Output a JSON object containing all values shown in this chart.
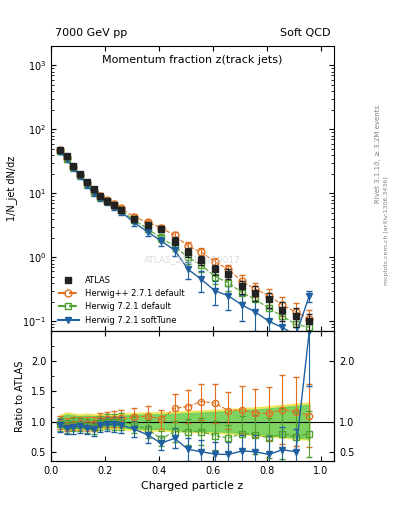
{
  "title_main": "Momentum fraction z(track jets)",
  "title_top_left": "7000 GeV pp",
  "title_top_right": "Soft QCD",
  "right_label": "Rivet 3.1.10, ≥ 3.2M events",
  "right_label2": "mcplots.cern.ch [arXiv:1306.3436]",
  "watermark": "ATLAS_2011_I919017",
  "xlabel": "Charged particle z",
  "ylabel": "1/N_jet dN/dz",
  "ylabel_ratio": "Ratio to ATLAS",
  "xlim": [
    0.0,
    1.05
  ],
  "ylim_main": [
    0.07,
    2000
  ],
  "ylim_ratio": [
    0.35,
    2.5
  ],
  "atlas_x": [
    0.033,
    0.058,
    0.083,
    0.108,
    0.133,
    0.158,
    0.183,
    0.208,
    0.233,
    0.258,
    0.308,
    0.358,
    0.408,
    0.458,
    0.508,
    0.558,
    0.608,
    0.658,
    0.708,
    0.758,
    0.808,
    0.858,
    0.908,
    0.958
  ],
  "atlas_y": [
    48.0,
    38.0,
    27.0,
    20.0,
    15.0,
    11.5,
    9.0,
    7.5,
    6.5,
    5.5,
    4.0,
    3.2,
    2.8,
    1.8,
    1.2,
    0.9,
    0.65,
    0.55,
    0.35,
    0.28,
    0.22,
    0.15,
    0.12,
    0.1
  ],
  "atlas_yerr": [
    3.5,
    2.8,
    2.0,
    1.5,
    1.2,
    0.9,
    0.7,
    0.6,
    0.55,
    0.5,
    0.4,
    0.35,
    0.3,
    0.25,
    0.2,
    0.15,
    0.12,
    0.1,
    0.08,
    0.07,
    0.06,
    0.05,
    0.04,
    0.03
  ],
  "hpp_x": [
    0.033,
    0.058,
    0.083,
    0.108,
    0.133,
    0.158,
    0.183,
    0.208,
    0.233,
    0.258,
    0.308,
    0.358,
    0.408,
    0.458,
    0.508,
    0.558,
    0.608,
    0.658,
    0.708,
    0.758,
    0.808,
    0.858,
    0.908,
    0.958
  ],
  "hpp_y": [
    47.0,
    36.0,
    26.0,
    19.5,
    14.5,
    11.0,
    9.2,
    7.8,
    6.8,
    5.8,
    4.3,
    3.5,
    2.9,
    2.2,
    1.5,
    1.2,
    0.85,
    0.65,
    0.42,
    0.32,
    0.25,
    0.18,
    0.14,
    0.11
  ],
  "hpp_yerr": [
    4.0,
    3.0,
    2.2,
    1.6,
    1.3,
    1.0,
    0.8,
    0.7,
    0.65,
    0.55,
    0.45,
    0.38,
    0.32,
    0.28,
    0.22,
    0.18,
    0.14,
    0.12,
    0.1,
    0.08,
    0.07,
    0.06,
    0.05,
    0.04
  ],
  "h72d_x": [
    0.033,
    0.058,
    0.083,
    0.108,
    0.133,
    0.158,
    0.183,
    0.208,
    0.233,
    0.258,
    0.308,
    0.358,
    0.408,
    0.458,
    0.508,
    0.558,
    0.608,
    0.658,
    0.708,
    0.758,
    0.808,
    0.858,
    0.908,
    0.958
  ],
  "h72d_y": [
    46.0,
    35.0,
    25.5,
    19.0,
    14.0,
    10.5,
    8.8,
    7.5,
    6.5,
    5.5,
    3.8,
    2.8,
    2.0,
    1.5,
    1.0,
    0.75,
    0.5,
    0.4,
    0.28,
    0.22,
    0.16,
    0.12,
    0.09,
    0.08
  ],
  "h72d_yerr": [
    4.0,
    3.0,
    2.2,
    1.6,
    1.3,
    1.0,
    0.8,
    0.7,
    0.65,
    0.55,
    0.42,
    0.35,
    0.28,
    0.24,
    0.2,
    0.16,
    0.12,
    0.1,
    0.08,
    0.07,
    0.06,
    0.05,
    0.04,
    0.03
  ],
  "h72s_x": [
    0.033,
    0.058,
    0.083,
    0.108,
    0.133,
    0.158,
    0.183,
    0.208,
    0.233,
    0.258,
    0.308,
    0.358,
    0.408,
    0.458,
    0.508,
    0.558,
    0.608,
    0.658,
    0.708,
    0.758,
    0.808,
    0.858,
    0.908,
    0.958
  ],
  "h72s_y": [
    45.0,
    34.0,
    24.5,
    18.5,
    13.5,
    10.0,
    8.5,
    7.2,
    6.2,
    5.2,
    3.5,
    2.5,
    1.8,
    1.3,
    0.65,
    0.45,
    0.3,
    0.25,
    0.18,
    0.14,
    0.1,
    0.08,
    0.06,
    0.25
  ],
  "h72s_yerr": [
    4.0,
    3.0,
    2.2,
    1.6,
    1.3,
    1.0,
    0.8,
    0.7,
    0.65,
    0.55,
    0.42,
    0.35,
    0.28,
    0.24,
    0.2,
    0.16,
    0.12,
    0.1,
    0.08,
    0.07,
    0.06,
    0.05,
    0.04,
    0.05
  ],
  "atlas_band_x": [
    0.033,
    0.058,
    0.083,
    0.108,
    0.133,
    0.158,
    0.183,
    0.208,
    0.233,
    0.258,
    0.308,
    0.358,
    0.408,
    0.458,
    0.508,
    0.558,
    0.608,
    0.658,
    0.708,
    0.758,
    0.808,
    0.858,
    0.908,
    0.958
  ],
  "atlas_band_lo": [
    0.92,
    0.88,
    0.9,
    0.91,
    0.9,
    0.91,
    0.91,
    0.91,
    0.91,
    0.9,
    0.89,
    0.88,
    0.88,
    0.87,
    0.86,
    0.85,
    0.84,
    0.83,
    0.81,
    0.8,
    0.78,
    0.76,
    0.74,
    0.72
  ],
  "atlas_band_hi": [
    1.08,
    1.12,
    1.1,
    1.09,
    1.1,
    1.09,
    1.09,
    1.09,
    1.09,
    1.1,
    1.11,
    1.12,
    1.12,
    1.13,
    1.14,
    1.15,
    1.16,
    1.17,
    1.19,
    1.2,
    1.22,
    1.24,
    1.26,
    1.28
  ],
  "color_atlas": "#222222",
  "color_hpp": "#e07020",
  "color_h72d": "#50a030",
  "color_h72s": "#2060a0",
  "color_band_yellow": "#f0e040",
  "color_band_green": "#60d060"
}
